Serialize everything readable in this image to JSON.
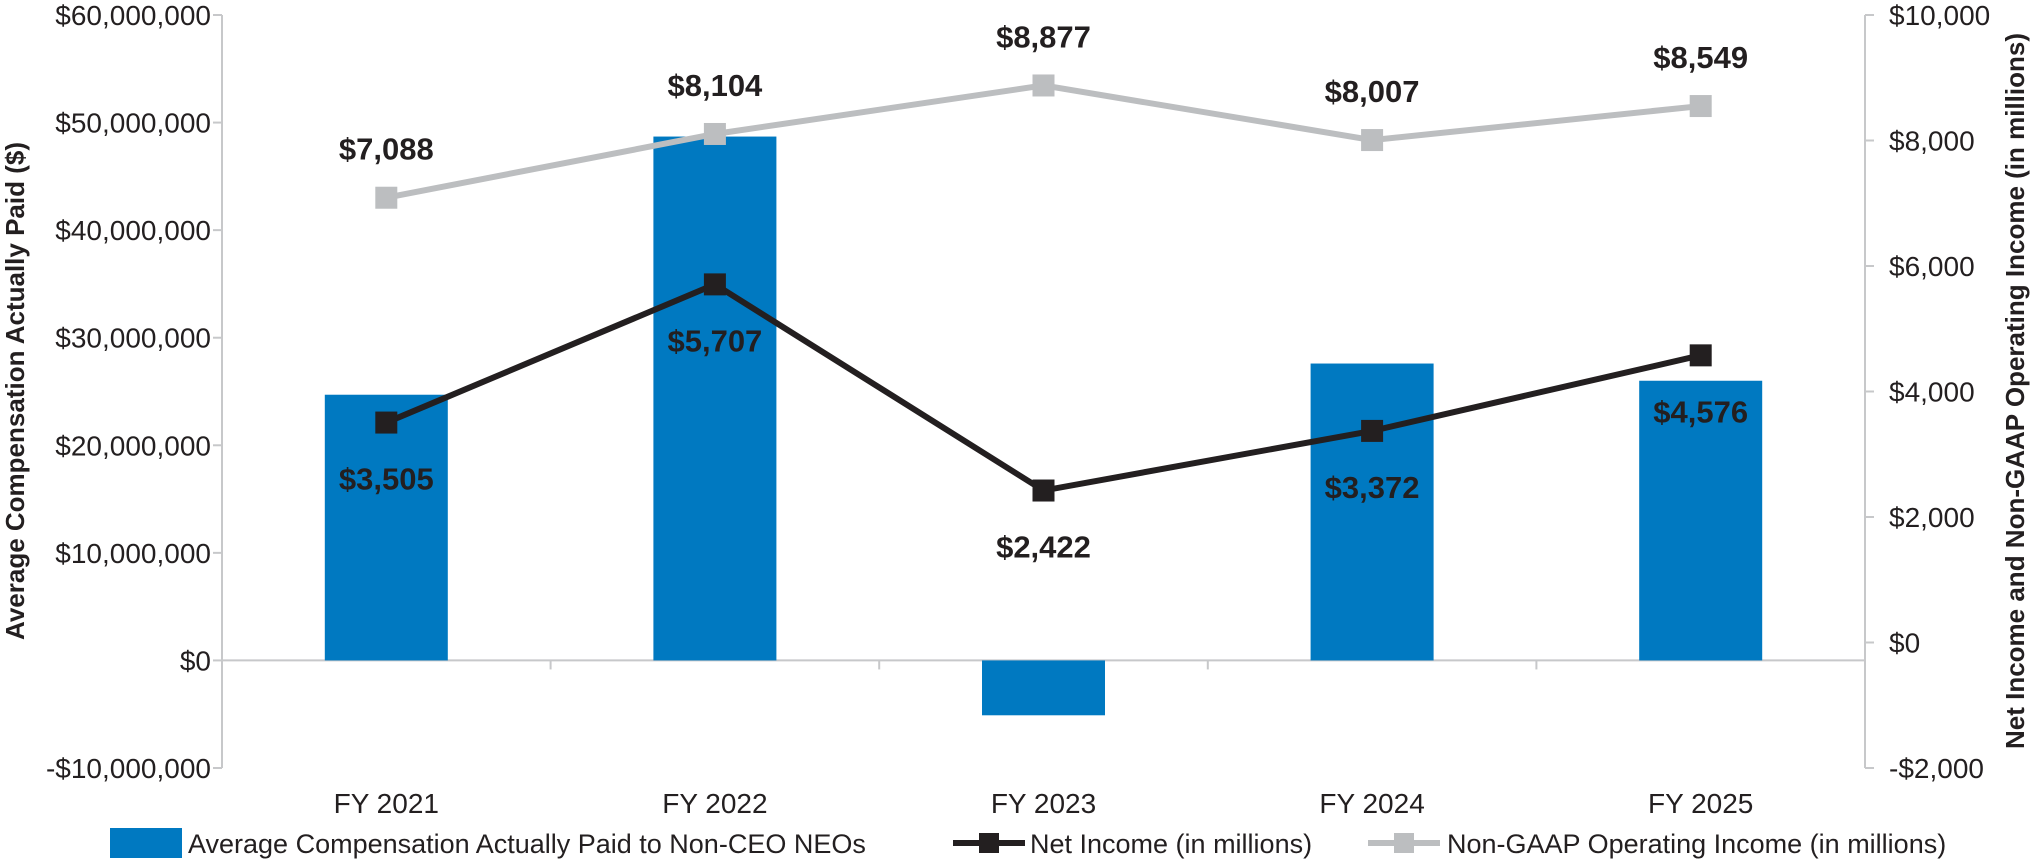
{
  "chart_data": {
    "type": "bar+line",
    "categories": [
      "FY 2021",
      "FY 2022",
      "FY 2023",
      "FY 2024",
      "FY 2025"
    ],
    "left_axis": {
      "label": "Average Compensation Actually Paid ($)",
      "range": [
        -10000000,
        60000000
      ],
      "ticks": [
        60000000,
        50000000,
        40000000,
        30000000,
        20000000,
        10000000,
        0,
        -10000000
      ],
      "tick_labels": [
        "$60,000,000",
        "$50,000,000",
        "$40,000,000",
        "$30,000,000",
        "$20,000,000",
        "$10,000,000",
        "$0",
        "-$10,000,000"
      ]
    },
    "right_axis": {
      "label": "Net Income and Non-GAAP Operating Income (in millions)",
      "range": [
        -2000,
        10000
      ],
      "ticks": [
        10000,
        8000,
        6000,
        4000,
        2000,
        0,
        -2000
      ],
      "tick_labels": [
        "$10,000",
        "$8,000",
        "$6,000",
        "$4,000",
        "$2,000",
        "$0",
        "-$2,000"
      ]
    },
    "series": [
      {
        "name": "Average Compensation Actually Paid to Non-CEO NEOs",
        "type": "bar",
        "axis": "left",
        "color": "#0079c1",
        "values": [
          24700000,
          48700000,
          -5100000,
          27600000,
          26000000
        ]
      },
      {
        "name": "Net Income (in millions)",
        "type": "line",
        "axis": "right",
        "color": "#231f20",
        "values": [
          3505,
          5707,
          2422,
          3372,
          4576
        ],
        "data_labels": [
          "$3,505",
          "$5,707",
          "$2,422",
          "$3,372",
          "$4,576"
        ]
      },
      {
        "name": "Non-GAAP Operating Income (in millions)",
        "type": "line",
        "axis": "right",
        "color": "#bcbec0",
        "values": [
          7088,
          8104,
          8877,
          8007,
          8549
        ],
        "data_labels": [
          "$7,088",
          "$8,104",
          "$8,877",
          "$8,007",
          "$8,549"
        ]
      }
    ],
    "grid": false,
    "legend_position": "bottom"
  }
}
